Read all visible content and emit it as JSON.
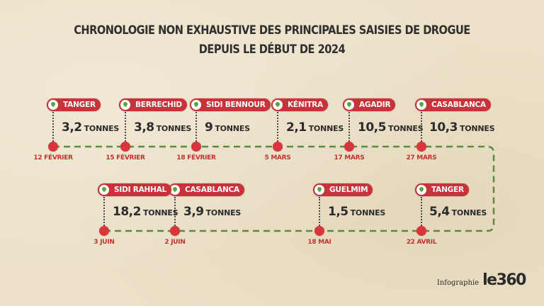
{
  "title": {
    "line1": "CHRONOLOGIE NON EXHAUSTIVE DES PRINCIPALES SAISIES DE DROGUE",
    "line2": "DEPUIS LE DÉBUT DE 2024"
  },
  "events": [
    {
      "city": "TANGER",
      "amount": "3,2",
      "unit": "TONNES",
      "date": "12 FÉVRIER"
    },
    {
      "city": "BERRECHID",
      "amount": "3,8",
      "unit": "TONNES",
      "date": "15 FÉVRIER"
    },
    {
      "city": "SIDI BENNOUR",
      "amount": "9",
      "unit": "TONNES",
      "date": "18 FÉVRIER"
    },
    {
      "city": "KÉNITRA",
      "amount": "2,1",
      "unit": "TONNES",
      "date": "5 MARS"
    },
    {
      "city": "AGADIR",
      "amount": "10,5",
      "unit": "TONNES",
      "date": "17 MARS"
    },
    {
      "city": "CASABLANCA",
      "amount": "10,3",
      "unit": "TONNES",
      "date": "27 MARS"
    },
    {
      "city": "TANGER",
      "amount": "5,4",
      "unit": "TONNES",
      "date": "22 AVRIL"
    },
    {
      "city": "GUELMIM",
      "amount": "1,5",
      "unit": "TONNES",
      "date": "18 MAI"
    },
    {
      "city": "CASABLANCA",
      "amount": "3,9",
      "unit": "TONNES",
      "date": "2 JUIN"
    },
    {
      "city": "SIDI RAHHAL",
      "amount": "18,2",
      "unit": "TONNES",
      "date": "3 JUIN"
    }
  ],
  "credit": {
    "label": "Infographie",
    "logo": "le360"
  },
  "colors": {
    "accent": "#c8323a",
    "track": "#5a8a3c",
    "pin": "#5aa23c",
    "text": "#2b2b2b",
    "background": "#ece1c8"
  }
}
